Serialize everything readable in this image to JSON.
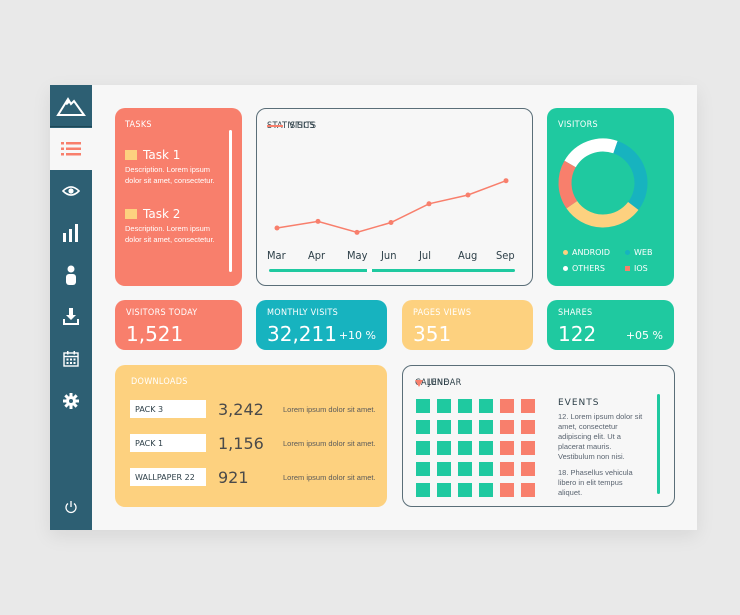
{
  "sidebar": {
    "logo": "mountain-logo",
    "items": [
      {
        "id": "list",
        "icon": "list-icon",
        "active": true
      },
      {
        "id": "view",
        "icon": "eye-icon"
      },
      {
        "id": "stats",
        "icon": "bar-chart-icon"
      },
      {
        "id": "user",
        "icon": "user-icon"
      },
      {
        "id": "download",
        "icon": "download-icon"
      },
      {
        "id": "calendar",
        "icon": "calendar-icon"
      },
      {
        "id": "settings",
        "icon": "gear-icon"
      },
      {
        "id": "power",
        "icon": "power-icon"
      }
    ]
  },
  "tasks": {
    "title": "TASKS",
    "items": [
      {
        "title": "Task 1",
        "desc": "Description. Lorem ipsum dolor sit amet, consectetur."
      },
      {
        "title": "Task 2",
        "desc": "Description. Lorem ipsum dolor sit amet, consectetur."
      }
    ]
  },
  "statistics": {
    "title": "STATISTICS",
    "legend": "VISITS",
    "months": [
      "Mar",
      "Apr",
      "May",
      "Jun",
      "Jul",
      "Aug",
      "Sep"
    ]
  },
  "chart_data": [
    {
      "type": "line",
      "title": "STATISTICS",
      "categories": [
        "Mar",
        "Apr",
        "May",
        "Jun",
        "Jul",
        "Aug",
        "Sep"
      ],
      "series": [
        {
          "name": "VISITS",
          "values": [
            30,
            36,
            26,
            35,
            52,
            60,
            73
          ],
          "color": "#f87f6c"
        }
      ],
      "xlabel": "",
      "ylabel": ""
    },
    {
      "type": "pie",
      "title": "VISITORS",
      "categories": [
        "OTHERS",
        "WEB",
        "ANDROID",
        "IOS"
      ],
      "values": [
        22,
        30,
        30,
        18
      ],
      "colors": [
        "#ffffff",
        "#17b3bf",
        "#fdd17f",
        "#f87f6c"
      ]
    }
  ],
  "visitors": {
    "title": "VISITORS",
    "legend": [
      {
        "label": "ANDROID",
        "color": "#fdd17f"
      },
      {
        "label": "WEB",
        "color": "#17b3bf"
      },
      {
        "label": "OTHERS",
        "color": "#ffffff"
      },
      {
        "label": "IOS",
        "color": "#f87f6c"
      }
    ]
  },
  "tiles": {
    "visitors_today": {
      "label": "VISITORS TODAY",
      "value": "1,521"
    },
    "monthly_visits": {
      "label": "MONTHLY VISITS",
      "value": "32,211",
      "change": "+10 %"
    },
    "pages_views": {
      "label": "PAGES VIEWS",
      "value": "351"
    },
    "shares": {
      "label": "SHARES",
      "value": "122",
      "change": "+05 %"
    }
  },
  "downloads": {
    "title": "DOWNLOADS",
    "rows": [
      {
        "name": "PACK 3",
        "count": "3,242",
        "desc": "Lorem ipsum dolor sit amet."
      },
      {
        "name": "PACK 1",
        "count": "1,156",
        "desc": "Lorem ipsum dolor sit amet."
      },
      {
        "name": "WALLPAPER 22",
        "count": "921",
        "desc": "Lorem ipsum dolor sit amet."
      }
    ]
  },
  "calendar": {
    "title": "CALENDAR",
    "month": "JUNE",
    "events_title": "EVENTS",
    "events": [
      "12. Lorem ipsum dolor sit amet, consectetur adipiscing elit. Ut a placerat mauris. Vestibulum non nisi.",
      "18. Phasellus vehicula libero in elit tempus aliquet."
    ]
  },
  "colors": {
    "coral": "#f87f6c",
    "teal": "#17b3bf",
    "green": "#1fc9a0",
    "yellow": "#fdd17f",
    "sidebar": "#2d5f73"
  }
}
